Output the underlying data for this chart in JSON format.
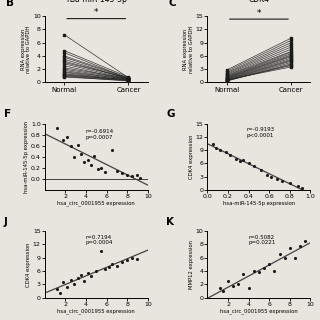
{
  "panel_B": {
    "title": "hsa-miR-145-5p",
    "label": "B",
    "ylabel": "RNA expression\nrelative to GAPDH",
    "xlabels": [
      "Normal",
      "Cancer"
    ],
    "ylim": [
      0,
      10
    ],
    "yticks": [
      0,
      2,
      4,
      6,
      8,
      10
    ],
    "normal_values": [
      7.2,
      4.8,
      4.5,
      4.0,
      3.8,
      3.5,
      3.2,
      3.0,
      2.8,
      2.5,
      2.2,
      2.0,
      1.8,
      1.6,
      1.5,
      1.3,
      1.2,
      1.1,
      1.0,
      0.9,
      0.8
    ],
    "cancer_values": [
      0.7,
      0.8,
      0.6,
      0.7,
      0.6,
      0.5,
      0.6,
      0.7,
      0.5,
      0.4,
      0.6,
      0.5,
      0.4,
      0.5,
      0.3,
      0.4,
      0.3,
      0.4,
      0.3,
      0.2,
      0.3
    ]
  },
  "panel_C": {
    "title": "CDK4",
    "label": "C",
    "ylabel": "RNA expression\nrelative to GAPDH",
    "xlabels": [
      "Normal",
      "Cancer"
    ],
    "ylim": [
      0,
      15
    ],
    "yticks": [
      0,
      3,
      6,
      9,
      12,
      15
    ],
    "normal_values": [
      2.8,
      2.5,
      2.2,
      2.0,
      1.8,
      1.6,
      1.5,
      1.3,
      1.2,
      1.1,
      1.0,
      0.9,
      0.8,
      0.7,
      0.6,
      0.5,
      0.4,
      0.3,
      0.4,
      0.5,
      0.6
    ],
    "cancer_values": [
      10.0,
      9.5,
      9.0,
      8.5,
      8.0,
      7.5,
      7.0,
      6.8,
      6.5,
      6.2,
      6.0,
      5.8,
      5.5,
      5.2,
      5.0,
      4.8,
      4.5,
      4.2,
      4.0,
      3.8,
      3.5
    ]
  },
  "panel_F": {
    "label": "F",
    "xlabel": "hsa_circ_0001955 expression",
    "ylabel": "hsa-miR-145-5p expression",
    "xlim": [
      0,
      10
    ],
    "ylim": [
      -0.2,
      1.0
    ],
    "xticks": [
      2,
      4,
      6,
      8,
      10
    ],
    "yticks": [
      0.0,
      0.2,
      0.4,
      0.6,
      0.8,
      1.0
    ],
    "annotation": "r=-0.6914\np=0.0007",
    "x": [
      1.2,
      1.8,
      2.2,
      2.5,
      2.8,
      3.2,
      3.5,
      3.8,
      4.2,
      4.5,
      4.8,
      5.2,
      5.5,
      5.8,
      6.5,
      7.0,
      7.5,
      8.0,
      8.5,
      9.0,
      9.2
    ],
    "y": [
      0.92,
      0.7,
      0.75,
      0.6,
      0.4,
      0.62,
      0.45,
      0.3,
      0.35,
      0.25,
      0.42,
      0.18,
      0.2,
      0.12,
      0.52,
      0.15,
      0.1,
      0.08,
      0.05,
      0.07,
      0.02
    ]
  },
  "panel_G": {
    "label": "G",
    "xlabel": "hsa-miR-145-5p expression",
    "ylabel": "CDK4 expression",
    "xlim": [
      0.0,
      1.0
    ],
    "ylim": [
      0,
      15
    ],
    "xticks": [
      0.0,
      0.2,
      0.4,
      0.6,
      0.8,
      1.0
    ],
    "yticks": [
      0,
      3,
      6,
      9,
      12,
      15
    ],
    "annotation": "r=-0.9193\np<0.0001",
    "x": [
      0.05,
      0.08,
      0.12,
      0.18,
      0.22,
      0.28,
      0.32,
      0.35,
      0.4,
      0.45,
      0.52,
      0.58,
      0.62,
      0.68,
      0.72,
      0.8,
      0.88,
      0.92
    ],
    "y": [
      10.5,
      9.5,
      9.0,
      8.5,
      8.0,
      7.0,
      6.5,
      6.8,
      6.0,
      5.5,
      4.5,
      3.5,
      3.0,
      2.5,
      2.0,
      1.5,
      1.0,
      0.5
    ]
  },
  "panel_J": {
    "label": "J",
    "xlabel": "hsa_circ_0001955 expression",
    "ylabel": "CDK4 expression",
    "xlim": [
      0,
      10
    ],
    "ylim": [
      0,
      15
    ],
    "xticks": [
      2,
      4,
      6,
      8,
      10
    ],
    "yticks": [
      0,
      3,
      6,
      9,
      12,
      15
    ],
    "annotation": "r=0.7194\np=0.0004",
    "x": [
      1.2,
      1.5,
      1.8,
      2.2,
      2.5,
      2.8,
      3.2,
      3.5,
      3.8,
      4.2,
      4.5,
      5.0,
      5.5,
      5.8,
      6.2,
      6.5,
      7.0,
      7.5,
      8.0,
      8.5,
      9.0
    ],
    "y": [
      2.0,
      1.0,
      3.5,
      2.5,
      4.0,
      3.0,
      4.5,
      5.0,
      3.8,
      5.5,
      4.8,
      6.0,
      10.5,
      6.5,
      7.0,
      7.5,
      7.2,
      8.0,
      8.5,
      9.0,
      8.8
    ]
  },
  "panel_K": {
    "label": "K",
    "xlabel": "hsa_circ_0001955 expression",
    "ylabel": "MMP12 expression",
    "xlim": [
      0,
      10
    ],
    "ylim": [
      0,
      10
    ],
    "xticks": [
      2,
      4,
      6,
      8,
      10
    ],
    "yticks": [
      0,
      2,
      4,
      6,
      8,
      10
    ],
    "annotation": "r=0.5082\np=0.0221",
    "x": [
      1.2,
      1.5,
      2.0,
      2.5,
      3.0,
      3.5,
      4.0,
      4.5,
      5.0,
      5.5,
      6.0,
      6.5,
      7.0,
      7.5,
      8.0,
      8.5,
      9.0,
      9.5
    ],
    "y": [
      1.5,
      1.0,
      2.5,
      1.8,
      2.0,
      3.5,
      1.5,
      4.0,
      3.8,
      4.5,
      5.0,
      4.0,
      6.5,
      6.0,
      7.5,
      6.0,
      7.8,
      8.5
    ]
  },
  "bg_color": "#e8e4de",
  "line_color": "#2a2a2a",
  "dot_color": "#1a1a1a",
  "fit_color": "#444444"
}
